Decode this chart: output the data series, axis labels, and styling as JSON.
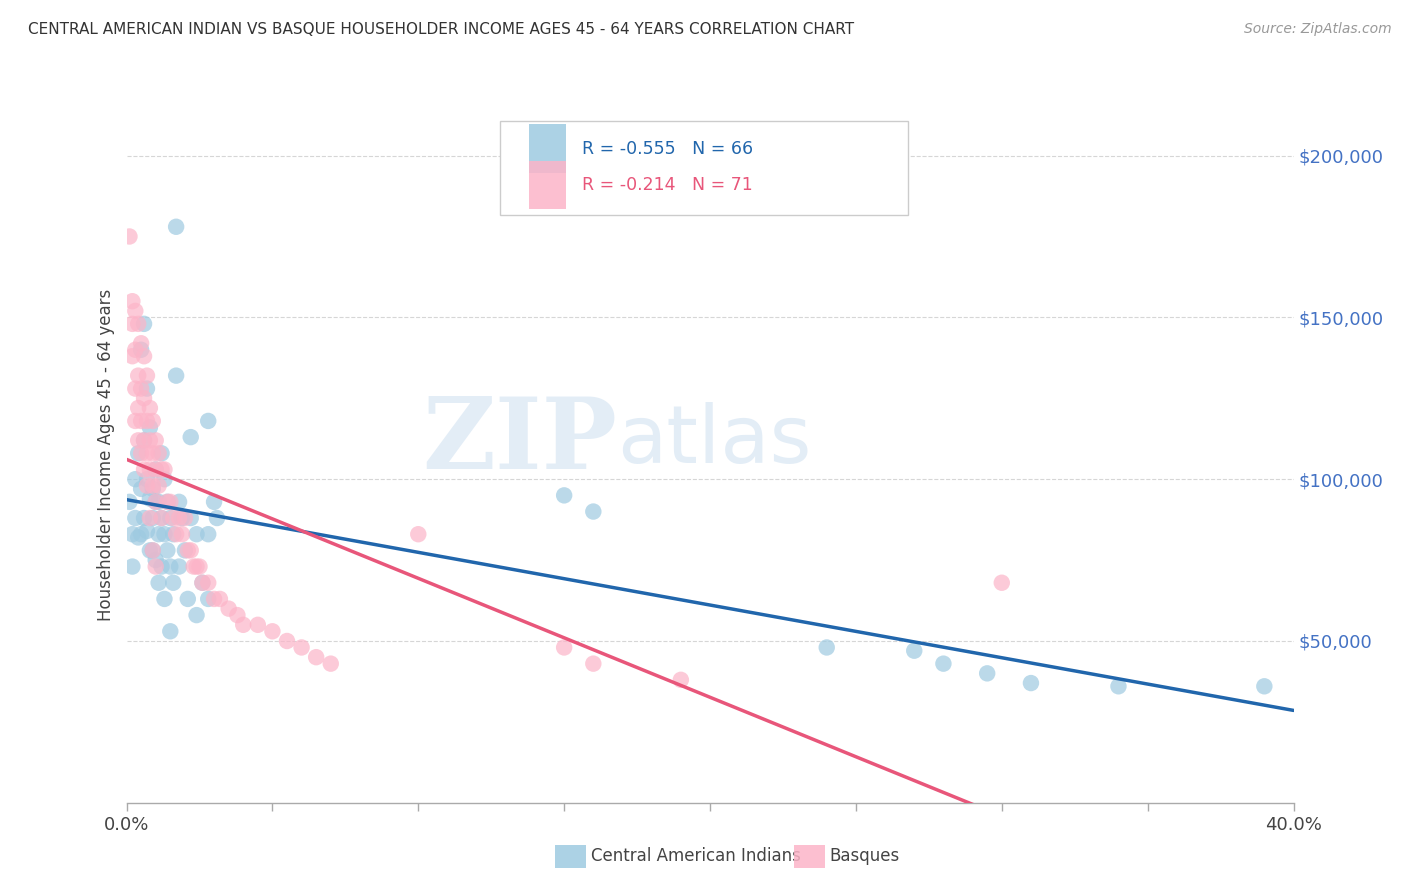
{
  "title": "CENTRAL AMERICAN INDIAN VS BASQUE HOUSEHOLDER INCOME AGES 45 - 64 YEARS CORRELATION CHART",
  "source": "Source: ZipAtlas.com",
  "ylabel": "Householder Income Ages 45 - 64 years",
  "yticks": [
    0,
    50000,
    100000,
    150000,
    200000
  ],
  "ytick_labels": [
    "",
    "$50,000",
    "$100,000",
    "$150,000",
    "$200,000"
  ],
  "ylim": [
    0,
    215000
  ],
  "xlim": [
    0.0,
    0.4
  ],
  "legend_blue_r": "-0.555",
  "legend_blue_n": "66",
  "legend_pink_r": "-0.214",
  "legend_pink_n": "71",
  "legend_blue_label": "Central American Indians",
  "legend_pink_label": "Basques",
  "blue_color": "#9ecae1",
  "pink_color": "#fcb4c8",
  "blue_line_color": "#2166ac",
  "pink_line_color": "#e8567a",
  "blue_scatter": [
    [
      0.001,
      93000
    ],
    [
      0.002,
      83000
    ],
    [
      0.002,
      73000
    ],
    [
      0.003,
      100000
    ],
    [
      0.003,
      88000
    ],
    [
      0.004,
      108000
    ],
    [
      0.004,
      82000
    ],
    [
      0.005,
      140000
    ],
    [
      0.005,
      97000
    ],
    [
      0.005,
      83000
    ],
    [
      0.006,
      148000
    ],
    [
      0.006,
      112000
    ],
    [
      0.006,
      88000
    ],
    [
      0.007,
      128000
    ],
    [
      0.007,
      100000
    ],
    [
      0.007,
      84000
    ],
    [
      0.008,
      116000
    ],
    [
      0.008,
      94000
    ],
    [
      0.008,
      78000
    ],
    [
      0.009,
      97000
    ],
    [
      0.009,
      88000
    ],
    [
      0.009,
      78000
    ],
    [
      0.01,
      103000
    ],
    [
      0.01,
      93000
    ],
    [
      0.01,
      75000
    ],
    [
      0.011,
      93000
    ],
    [
      0.011,
      83000
    ],
    [
      0.011,
      68000
    ],
    [
      0.012,
      108000
    ],
    [
      0.012,
      88000
    ],
    [
      0.012,
      73000
    ],
    [
      0.013,
      100000
    ],
    [
      0.013,
      83000
    ],
    [
      0.013,
      63000
    ],
    [
      0.014,
      93000
    ],
    [
      0.014,
      78000
    ],
    [
      0.015,
      88000
    ],
    [
      0.015,
      73000
    ],
    [
      0.015,
      53000
    ],
    [
      0.016,
      83000
    ],
    [
      0.016,
      68000
    ],
    [
      0.017,
      178000
    ],
    [
      0.017,
      132000
    ],
    [
      0.018,
      93000
    ],
    [
      0.018,
      73000
    ],
    [
      0.019,
      88000
    ],
    [
      0.02,
      78000
    ],
    [
      0.021,
      63000
    ],
    [
      0.022,
      113000
    ],
    [
      0.022,
      88000
    ],
    [
      0.024,
      83000
    ],
    [
      0.024,
      58000
    ],
    [
      0.026,
      68000
    ],
    [
      0.028,
      118000
    ],
    [
      0.028,
      83000
    ],
    [
      0.028,
      63000
    ],
    [
      0.03,
      93000
    ],
    [
      0.031,
      88000
    ],
    [
      0.15,
      95000
    ],
    [
      0.16,
      90000
    ],
    [
      0.24,
      48000
    ],
    [
      0.27,
      47000
    ],
    [
      0.28,
      43000
    ],
    [
      0.295,
      40000
    ],
    [
      0.31,
      37000
    ],
    [
      0.34,
      36000
    ],
    [
      0.39,
      36000
    ]
  ],
  "pink_scatter": [
    [
      0.001,
      175000
    ],
    [
      0.002,
      155000
    ],
    [
      0.002,
      148000
    ],
    [
      0.002,
      138000
    ],
    [
      0.003,
      152000
    ],
    [
      0.003,
      140000
    ],
    [
      0.003,
      128000
    ],
    [
      0.003,
      118000
    ],
    [
      0.004,
      148000
    ],
    [
      0.004,
      132000
    ],
    [
      0.004,
      122000
    ],
    [
      0.004,
      112000
    ],
    [
      0.005,
      142000
    ],
    [
      0.005,
      128000
    ],
    [
      0.005,
      118000
    ],
    [
      0.005,
      108000
    ],
    [
      0.006,
      138000
    ],
    [
      0.006,
      125000
    ],
    [
      0.006,
      112000
    ],
    [
      0.006,
      103000
    ],
    [
      0.007,
      132000
    ],
    [
      0.007,
      118000
    ],
    [
      0.007,
      108000
    ],
    [
      0.007,
      98000
    ],
    [
      0.008,
      122000
    ],
    [
      0.008,
      112000
    ],
    [
      0.008,
      103000
    ],
    [
      0.008,
      88000
    ],
    [
      0.009,
      118000
    ],
    [
      0.009,
      108000
    ],
    [
      0.009,
      98000
    ],
    [
      0.009,
      78000
    ],
    [
      0.01,
      112000
    ],
    [
      0.01,
      103000
    ],
    [
      0.01,
      93000
    ],
    [
      0.01,
      73000
    ],
    [
      0.011,
      108000
    ],
    [
      0.011,
      98000
    ],
    [
      0.012,
      103000
    ],
    [
      0.012,
      88000
    ],
    [
      0.013,
      103000
    ],
    [
      0.014,
      93000
    ],
    [
      0.015,
      93000
    ],
    [
      0.016,
      88000
    ],
    [
      0.017,
      83000
    ],
    [
      0.018,
      88000
    ],
    [
      0.019,
      83000
    ],
    [
      0.02,
      88000
    ],
    [
      0.021,
      78000
    ],
    [
      0.022,
      78000
    ],
    [
      0.023,
      73000
    ],
    [
      0.024,
      73000
    ],
    [
      0.025,
      73000
    ],
    [
      0.026,
      68000
    ],
    [
      0.028,
      68000
    ],
    [
      0.03,
      63000
    ],
    [
      0.032,
      63000
    ],
    [
      0.035,
      60000
    ],
    [
      0.038,
      58000
    ],
    [
      0.04,
      55000
    ],
    [
      0.045,
      55000
    ],
    [
      0.05,
      53000
    ],
    [
      0.055,
      50000
    ],
    [
      0.06,
      48000
    ],
    [
      0.065,
      45000
    ],
    [
      0.07,
      43000
    ],
    [
      0.1,
      83000
    ],
    [
      0.15,
      48000
    ],
    [
      0.16,
      43000
    ],
    [
      0.19,
      38000
    ],
    [
      0.3,
      68000
    ]
  ],
  "watermark_zip": "ZIP",
  "watermark_atlas": "atlas",
  "background_color": "#ffffff",
  "grid_color": "#cccccc",
  "xtick_positions": [
    0.0,
    0.05,
    0.1,
    0.15,
    0.2,
    0.25,
    0.3,
    0.35,
    0.4
  ]
}
